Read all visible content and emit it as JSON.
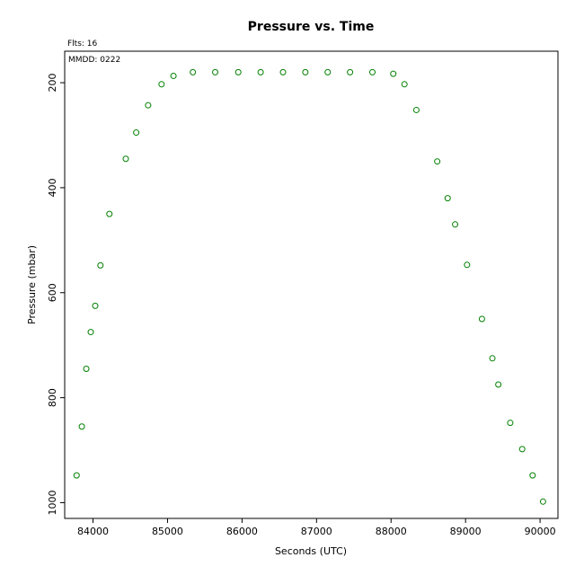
{
  "chart_data": {
    "type": "scatter",
    "title": "Pressure  vs. Time",
    "xlabel": "Seconds (UTC)",
    "ylabel": "Pressure (mbar)",
    "annotations": {
      "flts": "Flts: 16",
      "mmdd": "MMDD: 0222"
    },
    "xlim": [
      83620,
      90240
    ],
    "ylim": [
      1030,
      140
    ],
    "y_inverted": true,
    "grid": false,
    "x_ticks": [
      84000,
      85000,
      86000,
      87000,
      88000,
      89000,
      90000
    ],
    "y_ticks": [
      200,
      400,
      600,
      800,
      1000
    ],
    "marker": "open-circle",
    "color": "#008000",
    "points": [
      {
        "x": 83780,
        "y": 948
      },
      {
        "x": 83850,
        "y": 855
      },
      {
        "x": 83910,
        "y": 745
      },
      {
        "x": 83970,
        "y": 675
      },
      {
        "x": 84030,
        "y": 625
      },
      {
        "x": 84100,
        "y": 548
      },
      {
        "x": 84220,
        "y": 450
      },
      {
        "x": 84440,
        "y": 345
      },
      {
        "x": 84580,
        "y": 295
      },
      {
        "x": 84740,
        "y": 243
      },
      {
        "x": 84920,
        "y": 203
      },
      {
        "x": 85080,
        "y": 187
      },
      {
        "x": 85340,
        "y": 180
      },
      {
        "x": 85640,
        "y": 180
      },
      {
        "x": 85950,
        "y": 180
      },
      {
        "x": 86250,
        "y": 180
      },
      {
        "x": 86550,
        "y": 180
      },
      {
        "x": 86850,
        "y": 180
      },
      {
        "x": 87150,
        "y": 180
      },
      {
        "x": 87450,
        "y": 180
      },
      {
        "x": 87750,
        "y": 180
      },
      {
        "x": 88030,
        "y": 183
      },
      {
        "x": 88180,
        "y": 203
      },
      {
        "x": 88340,
        "y": 252
      },
      {
        "x": 88620,
        "y": 350
      },
      {
        "x": 88760,
        "y": 420
      },
      {
        "x": 88860,
        "y": 470
      },
      {
        "x": 89020,
        "y": 547
      },
      {
        "x": 89220,
        "y": 650
      },
      {
        "x": 89360,
        "y": 725
      },
      {
        "x": 89440,
        "y": 775
      },
      {
        "x": 89600,
        "y": 848
      },
      {
        "x": 89760,
        "y": 898
      },
      {
        "x": 89900,
        "y": 948
      },
      {
        "x": 90040,
        "y": 998
      }
    ]
  }
}
